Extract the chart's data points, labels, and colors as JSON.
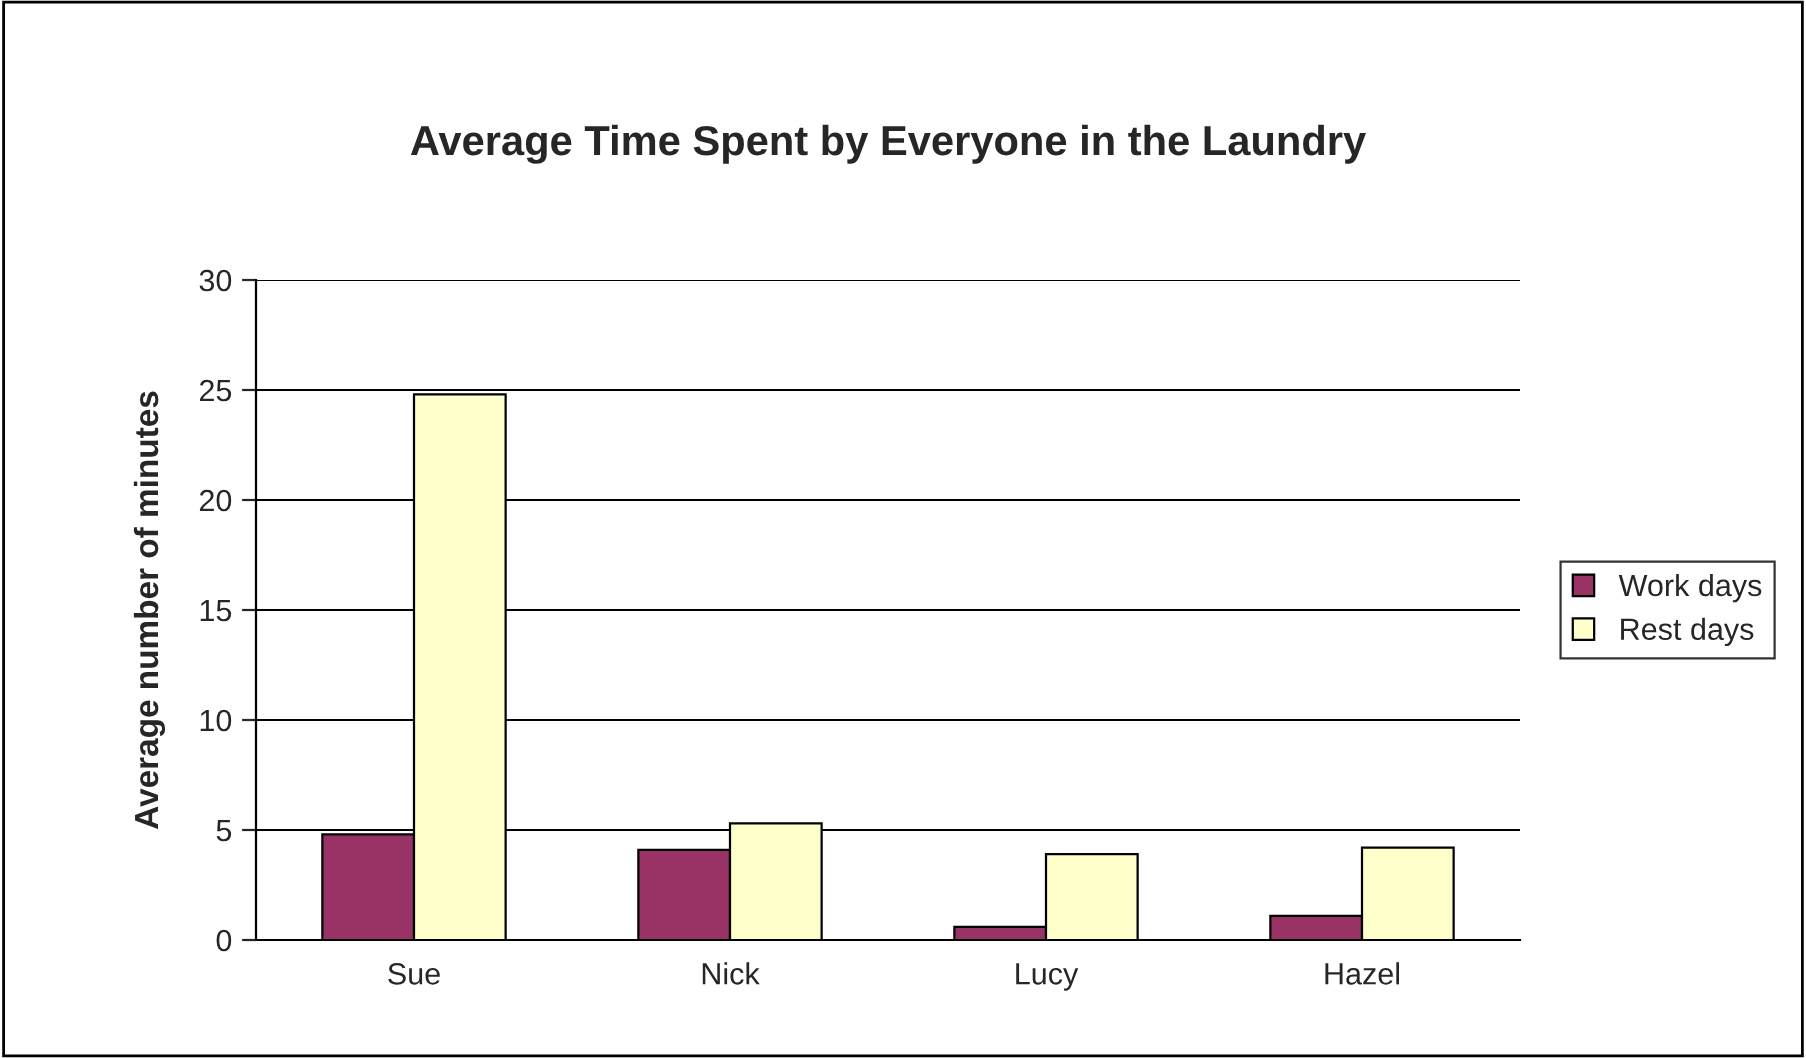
{
  "chart_data": {
    "type": "bar",
    "title": "Average Time Spent by Everyone in the Laundry",
    "ylabel": "Average number of minutes",
    "categories": [
      "Sue",
      "Nick",
      "Lucy",
      "Hazel"
    ],
    "series": [
      {
        "name": "Work days",
        "color": "#993366",
        "values": [
          4.8,
          4.1,
          0.6,
          1.1
        ]
      },
      {
        "name": "Rest days",
        "color": "#ffffcc",
        "values": [
          24.8,
          5.3,
          3.9,
          4.2
        ]
      }
    ],
    "ylim": [
      0,
      30
    ],
    "yticks": [
      0,
      5,
      10,
      15,
      20,
      25,
      30
    ],
    "grid": "y",
    "legend": "right"
  }
}
